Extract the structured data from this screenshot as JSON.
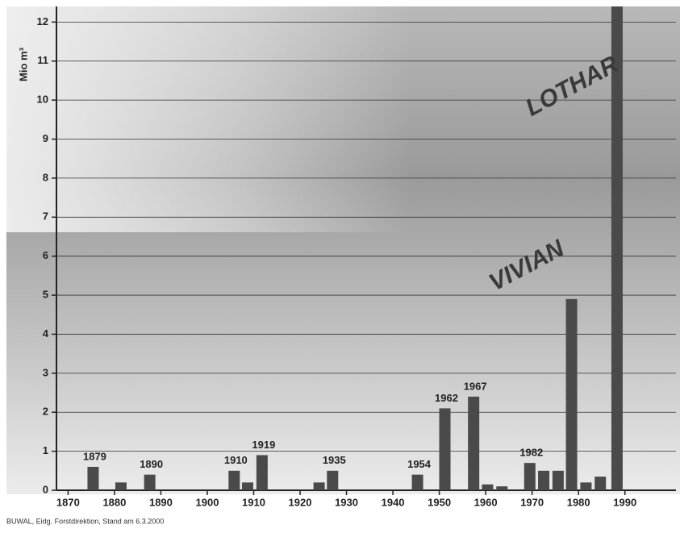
{
  "chart_data": {
    "type": "bar",
    "y_label": "Mio m³",
    "source": "BUWAL, Eidg. Forstdirektion, Stand am 6.3.2000",
    "x": [
      1875.4,
      1881.4,
      1887.6,
      1905.8,
      1908.7,
      1911.8,
      1924.1,
      1927.0,
      1945.3,
      1951.2,
      1957.4,
      1960.4,
      1963.5,
      1969.5,
      1972.5,
      1975.6,
      1978.5,
      1981.6,
      1984.7,
      1988.3
    ],
    "values": [
      0.6,
      0.2,
      0.4,
      0.5,
      0.2,
      0.9,
      0.2,
      0.5,
      0.4,
      2.1,
      2.4,
      0.15,
      0.1,
      0.7,
      0.5,
      0.5,
      4.9,
      0.2,
      0.35,
      12.4
    ],
    "bar_labels": [
      "1879",
      null,
      "1890",
      "1910",
      null,
      "1919",
      null,
      "1935",
      "1954",
      "1962",
      "1967",
      null,
      null,
      "1982",
      null,
      null,
      null,
      null,
      null,
      null
    ],
    "annotations": [
      {
        "text": "VIVIAN",
        "x": 1978.5,
        "y": 4.9
      },
      {
        "text": "LOTHAR",
        "x": 1988.3,
        "y": 9.5
      }
    ],
    "color": "#4a4a4a",
    "xlim": [
      1867.5,
      2001
    ],
    "xticks": [
      1870,
      1880,
      1890,
      1900,
      1910,
      1920,
      1930,
      1940,
      1950,
      1960,
      1970,
      1980,
      1990
    ],
    "ylim": [
      0,
      12.4
    ],
    "yticks": [
      0,
      1,
      2,
      3,
      4,
      5,
      6,
      7,
      8,
      9,
      10,
      11,
      12
    ],
    "grid": true
  }
}
